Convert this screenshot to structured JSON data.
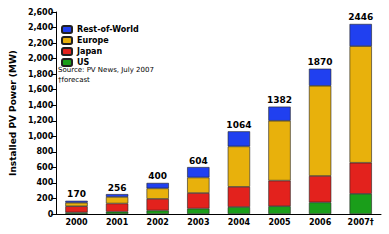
{
  "chart_data": {
    "type": "bar",
    "stacked": true,
    "y_label": "Installed PV Power (MW)",
    "categories": [
      "2000",
      "2001",
      "2002",
      "2003",
      "2004",
      "2005",
      "2006",
      "2007†"
    ],
    "series": [
      {
        "name": "US",
        "color": "#1a9e1a",
        "values": [
          20,
          30,
          45,
          70,
          90,
          100,
          150,
          260
        ]
      },
      {
        "name": "Japan",
        "color": "#e3221d",
        "values": [
          80,
          105,
          150,
          200,
          260,
          330,
          340,
          400
        ]
      },
      {
        "name": "Europe",
        "color": "#e8b10c",
        "values": [
          45,
          85,
          135,
          200,
          520,
          770,
          1160,
          1500
        ]
      },
      {
        "name": "Rest-of-World",
        "color": "#2040f0",
        "values": [
          25,
          36,
          70,
          134,
          194,
          182,
          220,
          286
        ]
      }
    ],
    "totals": [
      170,
      256,
      400,
      604,
      1064,
      1382,
      1870,
      2446
    ],
    "annotations": [
      "Source: PV News, July 2007",
      "†forecast"
    ],
    "ylim": [
      0,
      2600
    ],
    "yticks": [
      0,
      200,
      400,
      600,
      800,
      1000,
      1200,
      1400,
      1600,
      1800,
      2000,
      2200,
      2400,
      2600
    ],
    "grid": false,
    "legend": "upper left"
  }
}
